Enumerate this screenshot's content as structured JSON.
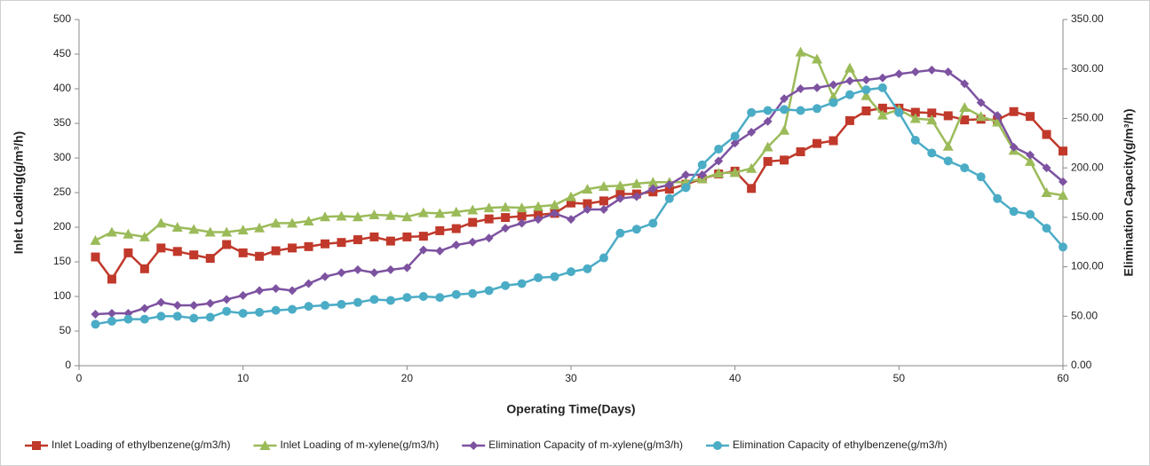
{
  "chart_data": {
    "type": "line",
    "x_label": "Operating Time(Days)",
    "y_label": "Inlet Loading(g/m³/h)",
    "y2_label": "Elimination Capacity(g/m³/h)",
    "x": [
      1,
      2,
      3,
      4,
      5,
      6,
      7,
      8,
      9,
      10,
      11,
      12,
      13,
      14,
      15,
      16,
      17,
      18,
      19,
      20,
      21,
      22,
      23,
      24,
      25,
      26,
      27,
      28,
      29,
      30,
      31,
      32,
      33,
      34,
      35,
      36,
      37,
      38,
      39,
      40,
      41,
      42,
      43,
      44,
      45,
      46,
      47,
      48,
      49,
      50,
      51,
      52,
      53,
      54,
      55,
      56,
      57,
      58,
      59,
      60
    ],
    "xlim": [
      0,
      60
    ],
    "xticks": [
      0,
      10,
      20,
      30,
      40,
      50,
      60
    ],
    "ylim": [
      0,
      500
    ],
    "yticks": [
      0,
      50,
      100,
      150,
      200,
      250,
      300,
      350,
      400,
      450,
      500
    ],
    "y2lim": [
      0,
      350
    ],
    "y2ticks": [
      {
        "value": 0,
        "label": "0.00"
      },
      {
        "value": 50,
        "label": "50.00"
      },
      {
        "value": 100,
        "label": "100.00"
      },
      {
        "value": 150,
        "label": "150.00"
      },
      {
        "value": 200,
        "label": "200.00"
      },
      {
        "value": 250,
        "label": "250.00"
      },
      {
        "value": 300,
        "label": "300.00"
      },
      {
        "value": 350,
        "label": "350.00"
      }
    ],
    "grid": false,
    "legend": "bottom",
    "series": [
      {
        "name": "Inlet Loading of ethylbenzene(g/m3/h)",
        "color": "#c0392b",
        "marker": "square",
        "values": [
          157,
          125,
          163,
          140,
          170,
          165,
          160,
          155,
          175,
          163,
          158,
          166,
          170,
          172,
          176,
          178,
          182,
          186,
          180,
          186,
          187,
          195,
          198,
          207,
          212,
          214,
          216,
          218,
          220,
          235,
          234,
          238,
          248,
          248,
          251,
          255,
          262,
          270,
          277,
          281,
          256,
          295,
          297,
          309,
          321,
          325,
          354,
          368,
          372,
          372,
          366,
          365,
          361,
          355,
          356,
          355,
          367,
          360,
          334,
          310
        ]
      },
      {
        "name": "Inlet Loading of m-xylene(g/m3/h)",
        "color": "#9bbb59",
        "marker": "triangle",
        "values": [
          181,
          193,
          190,
          186,
          206,
          200,
          197,
          193,
          193,
          196,
          199,
          206,
          206,
          209,
          215,
          216,
          215,
          218,
          217,
          215,
          221,
          220,
          222,
          225,
          228,
          229,
          228,
          230,
          232,
          244,
          255,
          259,
          260,
          263,
          265,
          265,
          265,
          270,
          278,
          279,
          285,
          316,
          340,
          453,
          443,
          388,
          430,
          390,
          362,
          370,
          357,
          355,
          317,
          373,
          360,
          352,
          311,
          295,
          250,
          246
        ]
      },
      {
        "name": "Elimination Capacity of m-xylene(g/m3/h)",
        "color": "#7d52a0",
        "marker": "diamond",
        "axis": "y2",
        "values": [
          52,
          53,
          53,
          58,
          64,
          61,
          61,
          63,
          67,
          71,
          76,
          78,
          76,
          83,
          90,
          94,
          97,
          94,
          97,
          99,
          117,
          116,
          122,
          125,
          129,
          139,
          144,
          148,
          154,
          148,
          158,
          158,
          169,
          171,
          179,
          183,
          193,
          193,
          207,
          225,
          236,
          247,
          270,
          280,
          281,
          284,
          288,
          289,
          291,
          295,
          297,
          299,
          297,
          285,
          266,
          253,
          221,
          213,
          200,
          186
        ]
      },
      {
        "name": "Elimination Capacity of ethylbenzene(g/m3/h)",
        "color": "#4bacc6",
        "marker": "circle",
        "axis": "y2",
        "values": [
          42,
          45,
          47,
          47,
          50,
          50,
          48,
          49,
          55,
          53,
          54,
          56,
          57,
          60,
          61,
          62,
          64,
          67,
          66,
          69,
          70,
          69,
          72,
          73,
          76,
          81,
          83,
          89,
          90,
          95,
          98,
          109,
          134,
          138,
          144,
          169,
          180,
          203,
          219,
          232,
          256,
          258,
          259,
          258,
          260,
          266,
          274,
          279,
          281,
          256,
          228,
          215,
          207,
          200,
          191,
          169,
          156,
          153,
          139,
          120
        ]
      }
    ]
  }
}
